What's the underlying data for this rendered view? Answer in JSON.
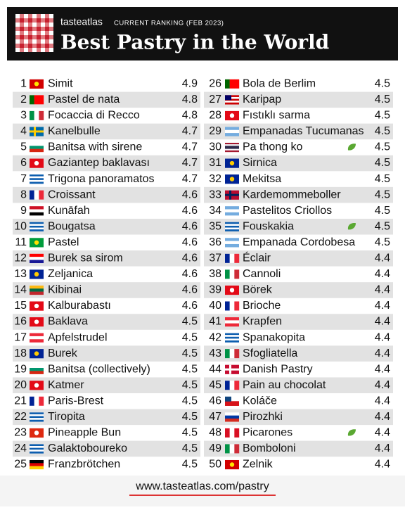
{
  "header": {
    "brand": "tasteatlas",
    "subtitle": "CURRENT RANKING (FEB 2023)",
    "title": "Best Pastry in the World"
  },
  "table": {
    "rows": [
      {
        "rank": 1,
        "name": "Simit",
        "score": 4.9
      },
      {
        "rank": 2,
        "name": "Pastel de nata",
        "score": 4.8
      },
      {
        "rank": 3,
        "name": "Focaccia di Recco",
        "score": 4.8
      },
      {
        "rank": 4,
        "name": "Kanelbulle",
        "score": 4.7
      },
      {
        "rank": 5,
        "name": "Banitsa with sirene",
        "score": 4.7
      },
      {
        "rank": 6,
        "name": "Gaziantep baklavası",
        "score": 4.7
      },
      {
        "rank": 7,
        "name": "Trigona panoramatos",
        "score": 4.7
      },
      {
        "rank": 8,
        "name": "Croissant",
        "score": 4.6
      },
      {
        "rank": 9,
        "name": "Kunāfah",
        "score": 4.6
      },
      {
        "rank": 10,
        "name": "Bougatsa",
        "score": 4.6
      },
      {
        "rank": 11,
        "name": "Pastel",
        "score": 4.6
      },
      {
        "rank": 12,
        "name": "Burek sa sirom",
        "score": 4.6
      },
      {
        "rank": 13,
        "name": "Zeljanica",
        "score": 4.6
      },
      {
        "rank": 14,
        "name": "Kibinai",
        "score": 4.6
      },
      {
        "rank": 15,
        "name": "Kalburabastı",
        "score": 4.6
      },
      {
        "rank": 16,
        "name": "Baklava",
        "score": 4.5
      },
      {
        "rank": 17,
        "name": "Apfelstrudel",
        "score": 4.5
      },
      {
        "rank": 18,
        "name": "Burek",
        "score": 4.5
      },
      {
        "rank": 19,
        "name": "Banitsa (collectively)",
        "score": 4.5
      },
      {
        "rank": 20,
        "name": "Katmer",
        "score": 4.5
      },
      {
        "rank": 21,
        "name": "Paris-Brest",
        "score": 4.5
      },
      {
        "rank": 22,
        "name": "Tiropita",
        "score": 4.5
      },
      {
        "rank": 23,
        "name": "Pineapple Bun",
        "score": 4.5
      },
      {
        "rank": 24,
        "name": "Galaktoboureko",
        "score": 4.5
      },
      {
        "rank": 25,
        "name": "Franzbrötchen",
        "score": 4.5
      },
      {
        "rank": 26,
        "name": "Bola de Berlim",
        "score": 4.5
      },
      {
        "rank": 27,
        "name": "Karipap",
        "score": 4.5
      },
      {
        "rank": 28,
        "name": "Fıstıklı sarma",
        "score": 4.5
      },
      {
        "rank": 29,
        "name": "Empanadas Tucumanas",
        "score": 4.5
      },
      {
        "rank": 30,
        "name": "Pa thong ko",
        "score": 4.5,
        "leaf": true
      },
      {
        "rank": 31,
        "name": "Sirnica",
        "score": 4.5
      },
      {
        "rank": 32,
        "name": "Mekitsa",
        "score": 4.5
      },
      {
        "rank": 33,
        "name": "Kardemommeboller",
        "score": 4.5
      },
      {
        "rank": 34,
        "name": "Pastelitos Criollos",
        "score": 4.5
      },
      {
        "rank": 35,
        "name": "Fouskakia",
        "score": 4.5,
        "leaf": true
      },
      {
        "rank": 36,
        "name": "Empanada Cordobesa",
        "score": 4.5
      },
      {
        "rank": 37,
        "name": "Éclair",
        "score": 4.4
      },
      {
        "rank": 38,
        "name": "Cannoli",
        "score": 4.4
      },
      {
        "rank": 39,
        "name": "Börek",
        "score": 4.4
      },
      {
        "rank": 40,
        "name": "Brioche",
        "score": 4.4
      },
      {
        "rank": 41,
        "name": "Krapfen",
        "score": 4.4
      },
      {
        "rank": 42,
        "name": "Spanakopita",
        "score": 4.4
      },
      {
        "rank": 43,
        "name": "Sfogliatella",
        "score": 4.4
      },
      {
        "rank": 44,
        "name": "Danish Pastry",
        "score": 4.4
      },
      {
        "rank": 45,
        "name": "Pain au chocolat",
        "score": 4.4
      },
      {
        "rank": 46,
        "name": "Koláče",
        "score": 4.4
      },
      {
        "rank": 47,
        "name": "Pirozhki",
        "score": 4.4
      },
      {
        "rank": 48,
        "name": "Picarones",
        "score": 4.4,
        "leaf": true
      },
      {
        "rank": 49,
        "name": "Bomboloni",
        "score": 4.4
      },
      {
        "rank": 50,
        "name": "Zelnik",
        "score": 4.4
      }
    ]
  },
  "footer": {
    "url": "www.tasteatlas.com/pastry"
  }
}
